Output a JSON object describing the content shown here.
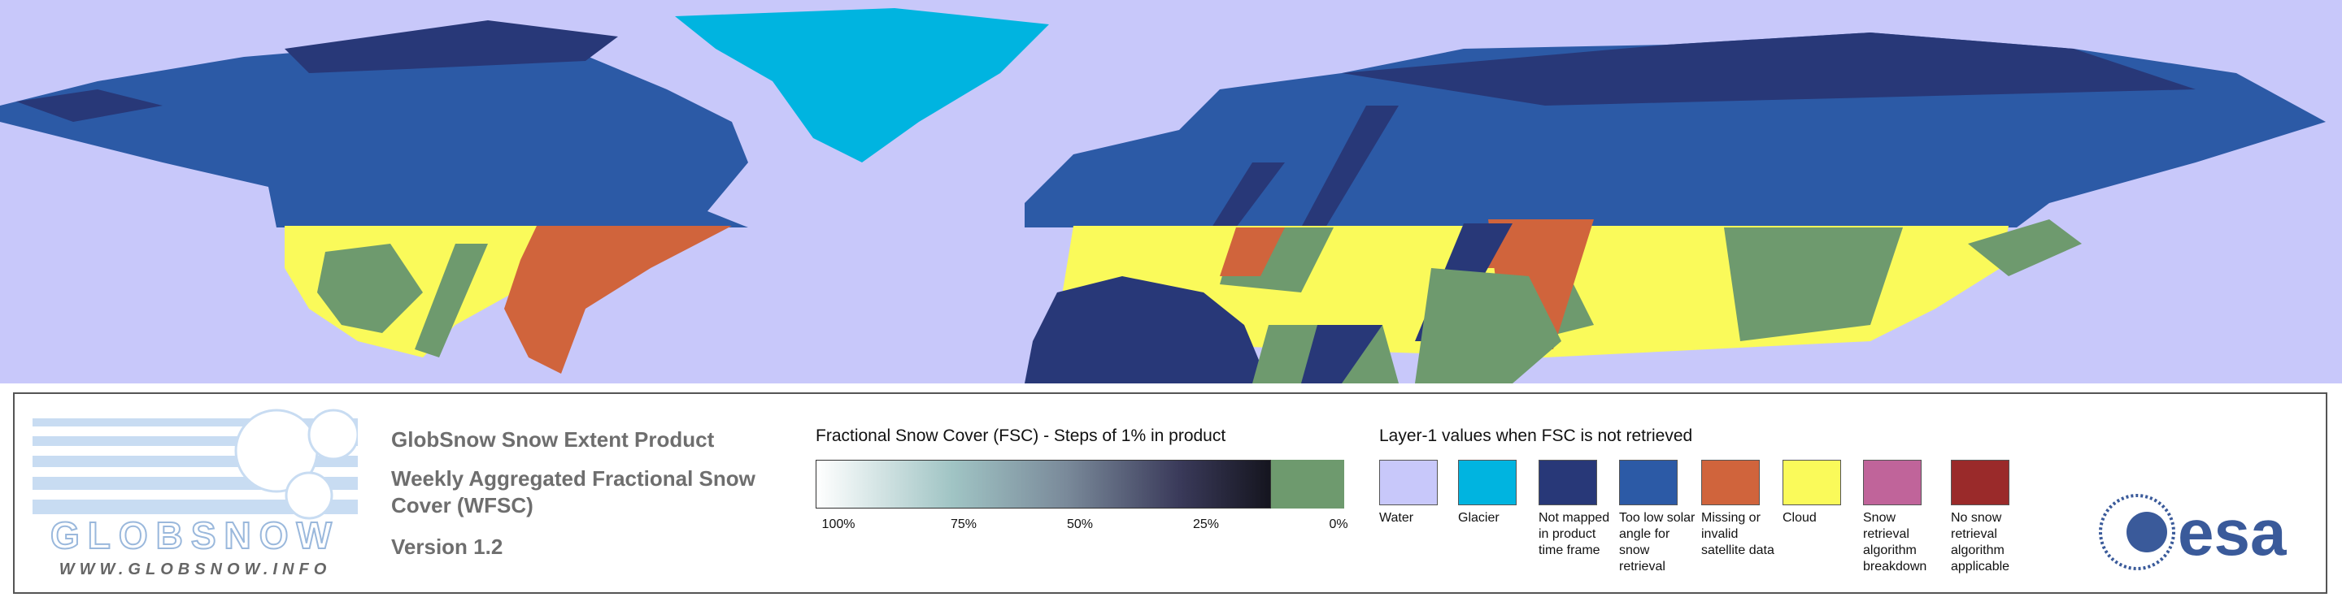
{
  "logo": {
    "name": "GLOBSNOW",
    "url": "WWW.GLOBSNOW.INFO"
  },
  "header": {
    "product": "GlobSnow Snow Extent Product",
    "title": "Weekly Aggregated Fractional Snow Cover (WFSC)",
    "version": "Version 1.2"
  },
  "fsc_scale": {
    "title": "Fractional Snow Cover (FSC) - Steps of 1% in product",
    "labels": [
      "100%",
      "75%",
      "50%",
      "25%",
      "0%"
    ]
  },
  "layer1": {
    "title": "Layer-1 values when FSC is not retrieved",
    "items": [
      {
        "label": "Water",
        "color": "#c8c8fa"
      },
      {
        "label": "Glacier",
        "color": "#00b4e0"
      },
      {
        "label": "Not mapped in product time frame",
        "color": "#283878"
      },
      {
        "label": "Too low solar angle for snow retrieval",
        "color": "#2c5aa6"
      },
      {
        "label": "Missing or invalid satellite data",
        "color": "#d0643c"
      },
      {
        "label": "Cloud",
        "color": "#fafa5a"
      },
      {
        "label": "Snow retrieval algorithm breakdown",
        "color": "#c0649a"
      },
      {
        "label": "No snow retrieval algorithm applicable",
        "color": "#9a2a2a"
      }
    ]
  },
  "agency": "esa"
}
